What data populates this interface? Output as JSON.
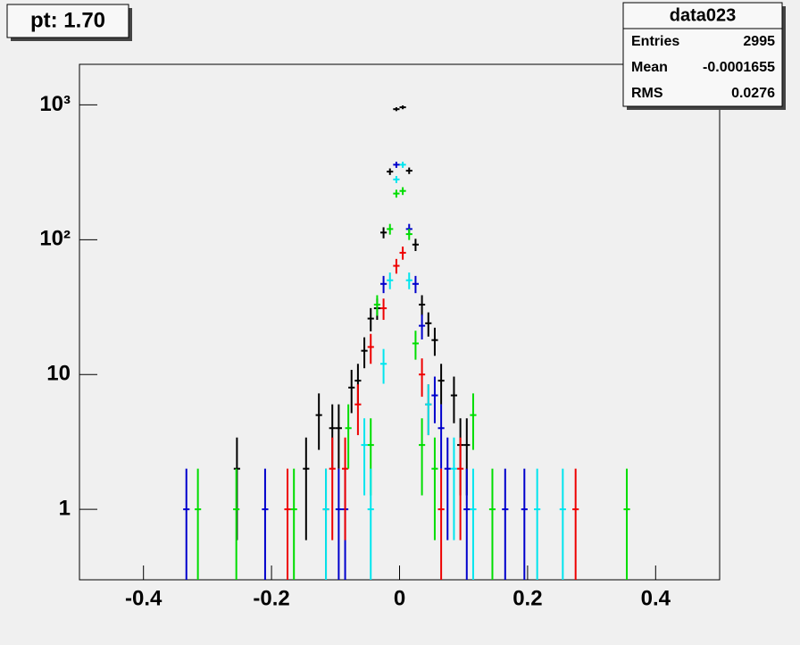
{
  "chart_data": {
    "type": "errorbar",
    "title": "pt: 1.70",
    "stats": {
      "name": "data023",
      "rows": [
        [
          "Entries",
          2995
        ],
        [
          "Mean",
          -0.0001655
        ],
        [
          "RMS",
          0.0276
        ]
      ]
    },
    "xlim": [
      -0.5,
      0.5
    ],
    "xticks": [
      -0.4,
      -0.2,
      0,
      0.2,
      0.4
    ],
    "ylim": [
      0.3,
      2000
    ],
    "log_y": true,
    "yticks": [
      1,
      10,
      {
        "value": 100,
        "label": "10²"
      },
      {
        "value": 1000,
        "label": "10³"
      }
    ],
    "xerr": 0.005,
    "series": [
      {
        "color": "#000000",
        "x": [
          -0.254,
          -0.146,
          -0.126,
          -0.105,
          -0.095,
          -0.075,
          -0.065,
          -0.055,
          -0.045,
          -0.035,
          -0.025,
          -0.015,
          -0.005,
          0.005,
          0.015,
          0.025,
          0.035,
          0.045,
          0.055,
          0.065,
          0.085,
          0.095,
          0.105
        ],
        "values": [
          2,
          2,
          5,
          4,
          4,
          8,
          9,
          15,
          26,
          31,
          113,
          320,
          930,
          960,
          325,
          92,
          33,
          24,
          18,
          9,
          7,
          3,
          3
        ],
        "errors": [
          1.41,
          1.41,
          2.24,
          2,
          2,
          2.83,
          3,
          3.87,
          5.1,
          5.57,
          10.63,
          17.89,
          30.5,
          30.98,
          18.03,
          9.59,
          5.74,
          4.9,
          4.24,
          3,
          2.65,
          1.73,
          1.73
        ]
      },
      {
        "color": "#0000cc",
        "x": [
          -0.333,
          -0.21,
          -0.095,
          -0.085,
          -0.025,
          -0.005,
          0.015,
          0.025,
          0.035,
          0.055,
          0.065,
          0.075,
          0.105,
          0.165,
          0.195
        ],
        "values": [
          1,
          1,
          1,
          1,
          47,
          360,
          120,
          47,
          23,
          7,
          4,
          2,
          1,
          1,
          1
        ],
        "errors": [
          1,
          1,
          1,
          1,
          6.86,
          18.97,
          10.95,
          6.86,
          4.8,
          2.65,
          2,
          1.41,
          1,
          1,
          1
        ]
      },
      {
        "color": "#ee0000",
        "x": [
          -0.175,
          -0.115,
          -0.105,
          -0.085,
          -0.065,
          -0.045,
          -0.025,
          -0.005,
          0.005,
          0.035,
          0.045,
          0.065,
          0.095,
          0.275
        ],
        "values": [
          1,
          1,
          2,
          2,
          6,
          16,
          31,
          64,
          80,
          10,
          6,
          1,
          2,
          1
        ],
        "errors": [
          1,
          1,
          1.41,
          1.41,
          2.45,
          4,
          5.57,
          8,
          8.94,
          3.16,
          2.45,
          1,
          1.41,
          1
        ]
      },
      {
        "color": "#00dd00",
        "x": [
          -0.315,
          -0.255,
          -0.165,
          -0.08,
          -0.045,
          -0.035,
          -0.015,
          -0.005,
          0.005,
          0.015,
          0.025,
          0.035,
          0.055,
          0.115,
          0.145,
          0.355
        ],
        "values": [
          1,
          1,
          1,
          4,
          3,
          33,
          120,
          220,
          230,
          110,
          17,
          3,
          2,
          5,
          1,
          1
        ],
        "errors": [
          1,
          1,
          1,
          2,
          1.73,
          5.74,
          10.95,
          14.83,
          15.17,
          10.49,
          4.12,
          1.73,
          1.41,
          2.24,
          1,
          1
        ]
      },
      {
        "color": "#00e5ee",
        "x": [
          -0.115,
          -0.055,
          -0.045,
          -0.025,
          -0.015,
          -0.005,
          0.005,
          0.015,
          0.045,
          0.085,
          0.115,
          0.215,
          0.255
        ],
        "values": [
          1,
          3,
          1,
          12,
          50,
          280,
          360,
          50,
          6,
          2,
          1,
          1,
          1
        ],
        "errors": [
          1,
          1.73,
          1,
          3.46,
          7.07,
          16.73,
          18.97,
          7.07,
          2.45,
          1.41,
          1,
          1,
          1
        ]
      }
    ]
  }
}
